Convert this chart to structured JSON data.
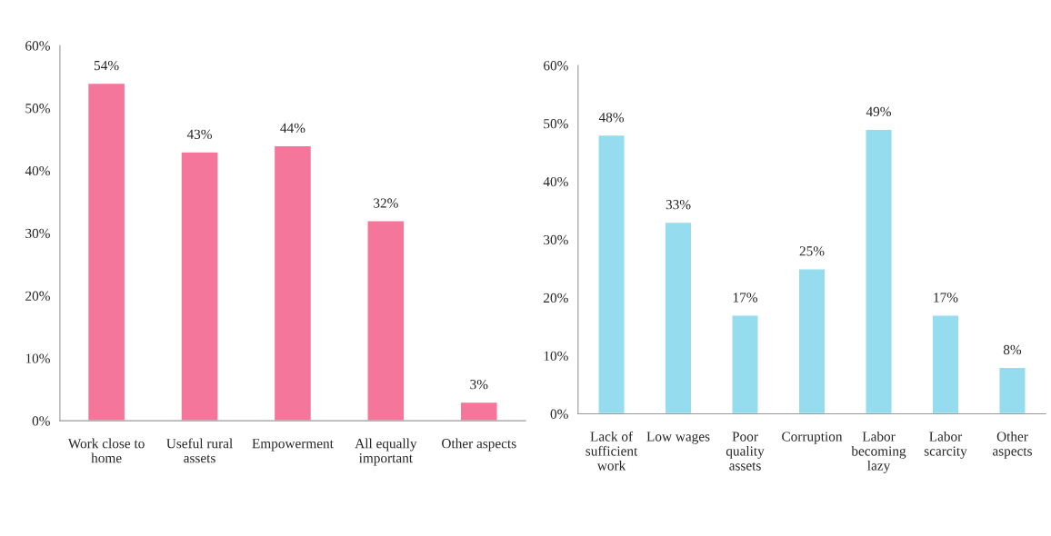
{
  "chart_data": [
    {
      "type": "bar",
      "categories": [
        "Work close to\nhome",
        "Useful rural\nassets",
        "Empowerment",
        "All equally\nimportant",
        "Other aspects"
      ],
      "values": [
        54,
        43,
        44,
        32,
        3
      ],
      "value_labels": [
        "54%",
        "43%",
        "44%",
        "32%",
        "3%"
      ],
      "color": "#f4779b",
      "ylim": [
        0,
        60
      ],
      "yticks": [
        {
          "value": 0,
          "label": "0%"
        },
        {
          "value": 10,
          "label": "10%"
        },
        {
          "value": 20,
          "label": "20%"
        },
        {
          "value": 30,
          "label": "30%"
        },
        {
          "value": 40,
          "label": "40%"
        },
        {
          "value": 50,
          "label": "50%"
        },
        {
          "value": 60,
          "label": "60%"
        }
      ],
      "grid": false
    },
    {
      "type": "bar",
      "categories": [
        "Lack of\nsufficient\nwork",
        "Low wages",
        "Poor\nquality\nassets",
        "Corruption",
        "Labor\nbecoming\nlazy",
        "Labor\nscarcity",
        "Other\naspects"
      ],
      "values": [
        48,
        33,
        17,
        25,
        49,
        17,
        8
      ],
      "value_labels": [
        "48%",
        "33%",
        "17%",
        "25%",
        "49%",
        "17%",
        "8%"
      ],
      "color": "#95dcef",
      "ylim": [
        0,
        60
      ],
      "yticks": [
        {
          "value": 0,
          "label": "0%"
        },
        {
          "value": 10,
          "label": "10%"
        },
        {
          "value": 20,
          "label": "20%"
        },
        {
          "value": 30,
          "label": "30%"
        },
        {
          "value": 40,
          "label": "40%"
        },
        {
          "value": 50,
          "label": "50%"
        },
        {
          "value": 60,
          "label": "60%"
        }
      ],
      "grid": false
    }
  ]
}
